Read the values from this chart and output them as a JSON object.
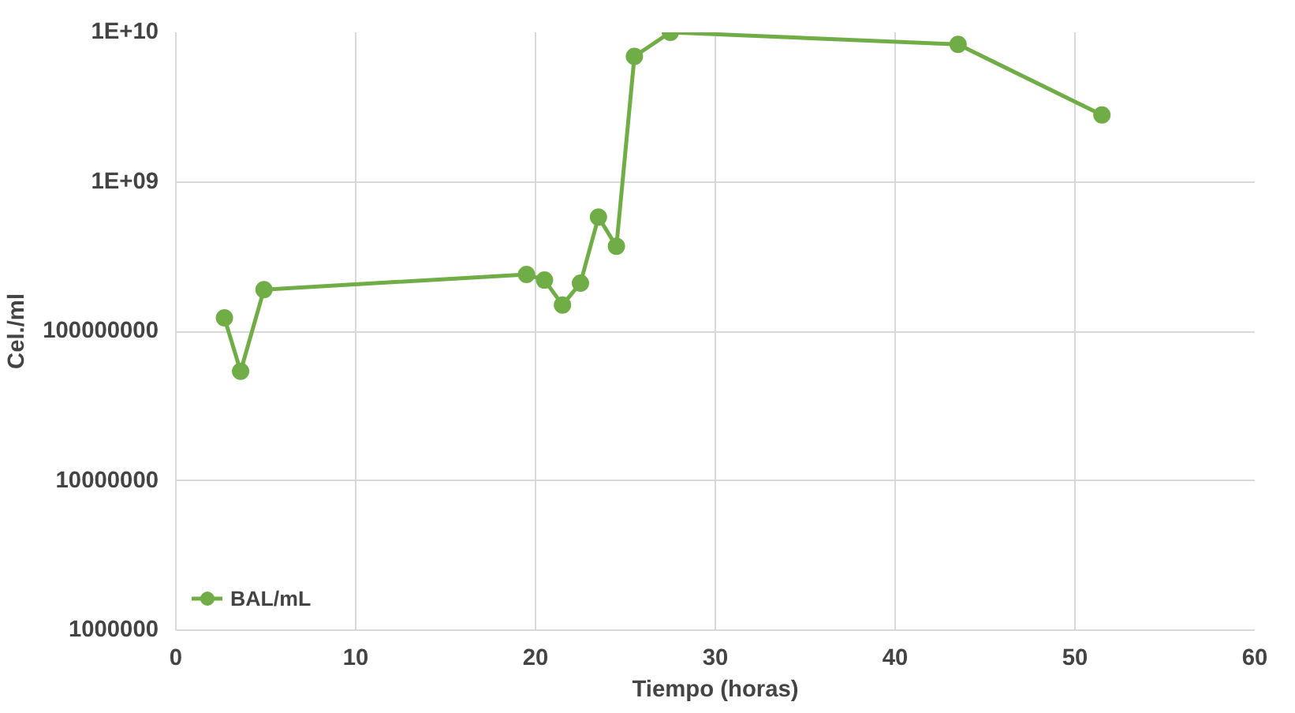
{
  "chart_data": {
    "type": "line",
    "xlabel": "Tiempo (horas)",
    "ylabel": "Cel./ml",
    "log": "y",
    "grid": true,
    "legend": "bottom left",
    "marker": "circle",
    "line_style": "solid",
    "x": [
      2.7,
      3.6,
      4.9,
      19.5,
      20.5,
      21.5,
      22.5,
      23.5,
      24.5,
      25.5,
      27.5,
      43.5,
      51.5
    ],
    "series": [
      {
        "name": "BAL/mL",
        "color": "#70ad47",
        "values": [
          123000000,
          54000000,
          190000000,
          240000000,
          220000000,
          150000000,
          210000000,
          580000000,
          370000000,
          6900000000,
          10000000000,
          8300000000,
          2800000000
        ]
      }
    ],
    "xlim": [
      0,
      60
    ],
    "xticks": [
      0,
      10,
      20,
      30,
      40,
      50,
      60
    ],
    "ylim": [
      1000000,
      10000000000
    ],
    "yticks": [
      {
        "value": 1000000,
        "label": "1000000"
      },
      {
        "value": 10000000,
        "label": "10000000"
      },
      {
        "value": 100000000,
        "label": "100000000"
      },
      {
        "value": 1000000000,
        "label": "1E+09"
      },
      {
        "value": 10000000000,
        "label": "1E+10"
      }
    ]
  }
}
